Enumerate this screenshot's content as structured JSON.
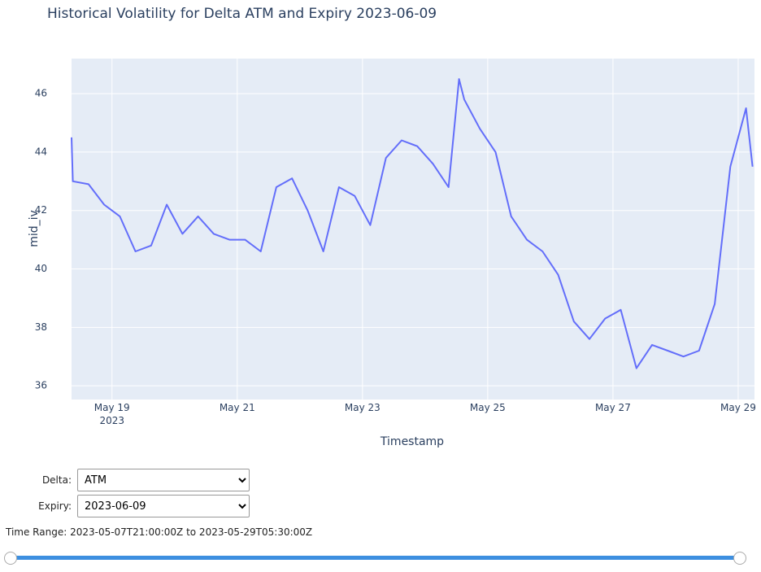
{
  "chart_data": {
    "type": "line",
    "title": "Historical Volatility for Delta ATM and Expiry 2023-06-09",
    "x_label": "Timestamp",
    "y_label": "mid_iv",
    "x": [
      "2023-05-18T08:30",
      "2023-05-18T09:00",
      "2023-05-18T15:00",
      "2023-05-18T21:00",
      "2023-05-19T03:00",
      "2023-05-19T09:00",
      "2023-05-19T15:00",
      "2023-05-19T21:00",
      "2023-05-20T03:00",
      "2023-05-20T09:00",
      "2023-05-20T15:00",
      "2023-05-20T21:00",
      "2023-05-21T03:00",
      "2023-05-21T09:00",
      "2023-05-21T15:00",
      "2023-05-21T21:00",
      "2023-05-22T03:00",
      "2023-05-22T09:00",
      "2023-05-22T15:00",
      "2023-05-22T21:00",
      "2023-05-23T03:00",
      "2023-05-23T09:00",
      "2023-05-23T15:00",
      "2023-05-23T21:00",
      "2023-05-24T03:00",
      "2023-05-24T09:00",
      "2023-05-24T13:00",
      "2023-05-24T15:00",
      "2023-05-24T21:00",
      "2023-05-25T03:00",
      "2023-05-25T09:00",
      "2023-05-25T15:00",
      "2023-05-25T21:00",
      "2023-05-26T03:00",
      "2023-05-26T09:00",
      "2023-05-26T15:00",
      "2023-05-26T21:00",
      "2023-05-27T03:00",
      "2023-05-27T09:00",
      "2023-05-27T15:00",
      "2023-05-27T21:00",
      "2023-05-28T03:00",
      "2023-05-28T09:00",
      "2023-05-28T15:00",
      "2023-05-28T21:00",
      "2023-05-29T03:00",
      "2023-05-29T05:30"
    ],
    "series": [
      {
        "color": "#636efa",
        "values": [
          44.5,
          43.0,
          42.9,
          42.2,
          41.8,
          40.6,
          40.8,
          42.2,
          41.2,
          41.8,
          41.2,
          41.0,
          41.0,
          40.6,
          42.8,
          43.1,
          42.0,
          40.6,
          42.8,
          42.5,
          41.5,
          43.8,
          44.4,
          44.2,
          43.6,
          42.8,
          46.5,
          45.8,
          44.8,
          44.0,
          41.8,
          41.0,
          40.6,
          39.8,
          38.2,
          37.6,
          38.3,
          38.6,
          36.6,
          37.4,
          37.2,
          37.0,
          37.2,
          38.8,
          43.5,
          45.5,
          43.5
        ]
      }
    ],
    "xlim": [
      "2023-05-18T08:30",
      "2023-05-29T06:15"
    ],
    "xticks": [
      {
        "value": "2023-05-19",
        "label": "May 19\n2023"
      },
      {
        "value": "2023-05-21",
        "label": "May 21"
      },
      {
        "value": "2023-05-23",
        "label": "May 23"
      },
      {
        "value": "2023-05-25",
        "label": "May 25"
      },
      {
        "value": "2023-05-27",
        "label": "May 27"
      },
      {
        "value": "2023-05-29",
        "label": "May 29"
      }
    ],
    "ylim": [
      35.53,
      47.2
    ],
    "yticks": [
      36,
      38,
      40,
      42,
      44,
      46
    ],
    "grid": true
  },
  "controls": {
    "delta": {
      "label": "Delta:",
      "value": "ATM"
    },
    "expiry": {
      "label": "Expiry:",
      "value": "2023-06-09"
    },
    "time_range": "Time Range: 2023-05-07T21:00:00Z to 2023-05-29T05:30:00Z"
  }
}
